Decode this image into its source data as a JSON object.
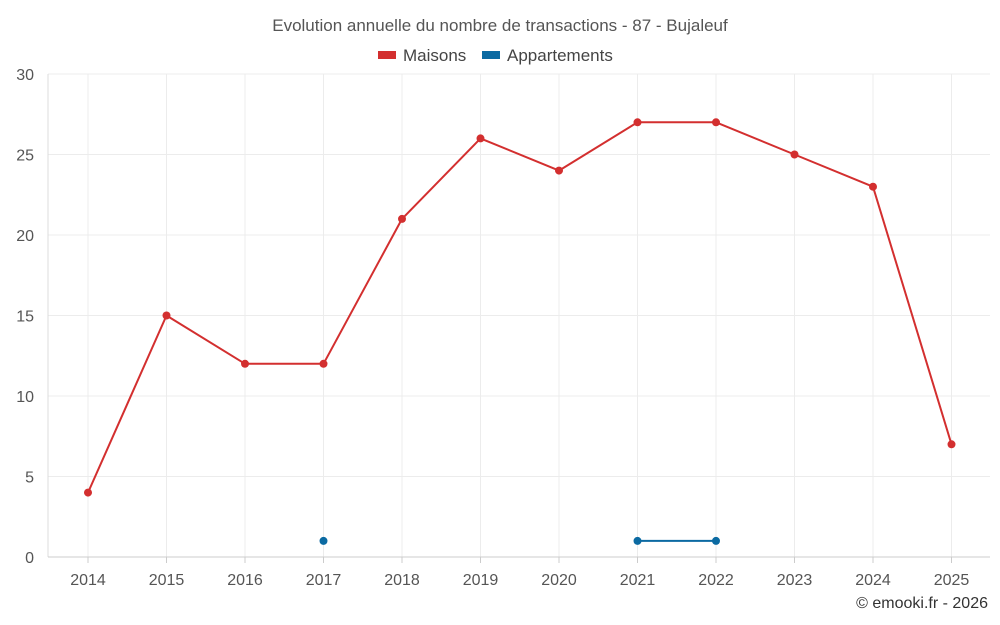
{
  "chart_data": {
    "type": "line",
    "title": "Evolution annuelle du nombre de transactions - 87 - Bujaleuf",
    "categories": [
      "2014",
      "2015",
      "2016",
      "2017",
      "2018",
      "2019",
      "2020",
      "2021",
      "2022",
      "2023",
      "2024",
      "2025"
    ],
    "series": [
      {
        "name": "Maisons",
        "color": "#d32f2f",
        "values": [
          4,
          15,
          12,
          12,
          21,
          26,
          24,
          27,
          27,
          25,
          23,
          7
        ]
      },
      {
        "name": "Appartements",
        "color": "#0b6aa2",
        "values": [
          null,
          null,
          null,
          1,
          null,
          null,
          null,
          1,
          1,
          null,
          null,
          null
        ]
      }
    ],
    "ylim": [
      0,
      30
    ],
    "yticks": [
      0,
      5,
      10,
      15,
      20,
      25,
      30
    ],
    "xlabel": "",
    "ylabel": "",
    "grid": true,
    "legend_position": "top-center"
  },
  "footer": {
    "copyright": "© emooki.fr - 2026"
  }
}
